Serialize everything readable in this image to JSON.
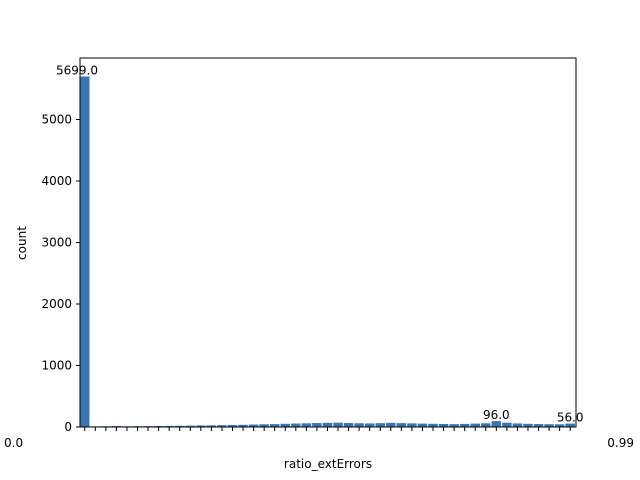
{
  "chart_data": {
    "type": "bar",
    "title": "",
    "xlabel": "ratio_extErrors",
    "ylabel": "count",
    "ylim": [
      0,
      6000
    ],
    "yticks": [
      0,
      1000,
      2000,
      3000,
      4000,
      5000
    ],
    "ytick_labels": [
      "0",
      "1000",
      "2000",
      "3000",
      "4000",
      "5000"
    ],
    "xtick_labels": [
      "0.0",
      "0.99"
    ],
    "bar_color": "#3b75af",
    "grid": false,
    "series": [
      {
        "values": [
          5699,
          10,
          12,
          15,
          11,
          13,
          14,
          16,
          18,
          20,
          22,
          25,
          27,
          30,
          33,
          36,
          40,
          44,
          47,
          52,
          56,
          60,
          64,
          67,
          70,
          64,
          61,
          58,
          62,
          67,
          63,
          59,
          55,
          52,
          49,
          46,
          50,
          55,
          60,
          96,
          70,
          58,
          52,
          48,
          45,
          44,
          56
        ]
      }
    ],
    "annotations": [
      "5699.0",
      "96.0",
      "56.0"
    ]
  }
}
